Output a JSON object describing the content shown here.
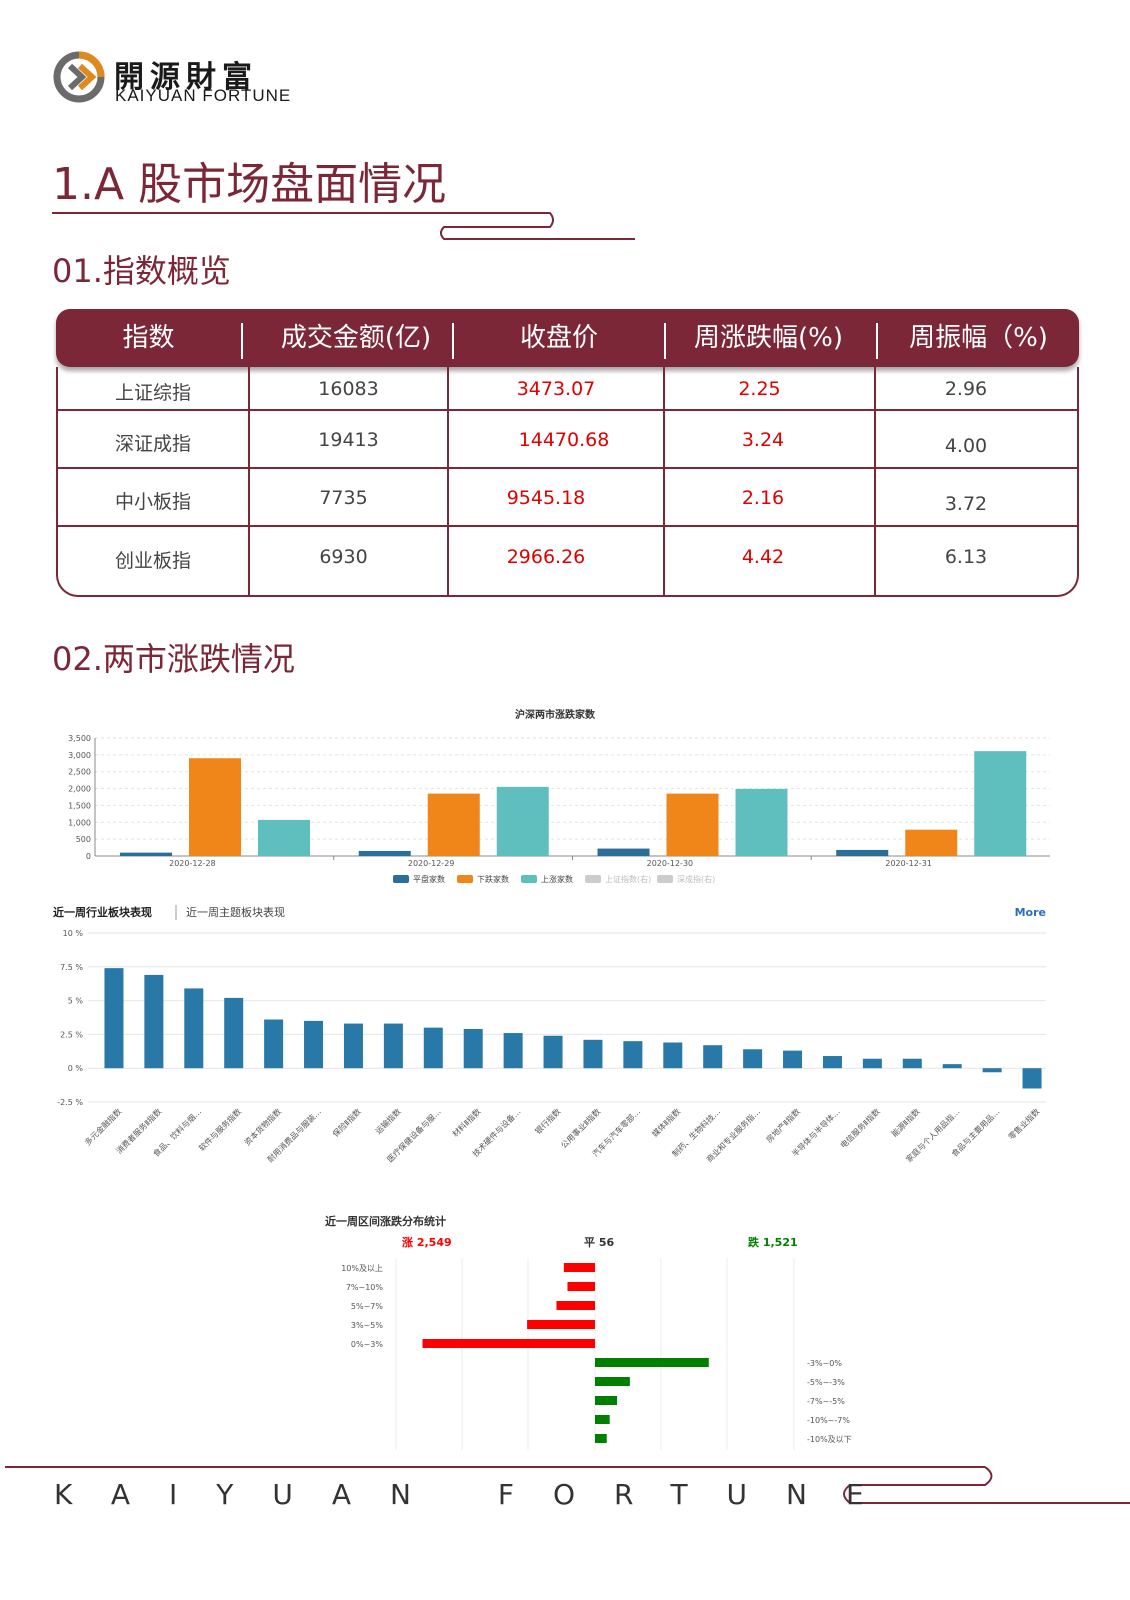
{
  "brand": {
    "cn": "開源財富",
    "en": "KAIYUAN FORTUNE"
  },
  "section_title": "1.A 股市场盘面情况",
  "sub1": "01.指数概览",
  "sub2": "02.两市涨跌情况",
  "table": {
    "headers": [
      "指数",
      "成交金额(亿)",
      "收盘价",
      "周涨跌幅(%)",
      "周振幅（%)"
    ],
    "rows": [
      [
        "上证综指",
        "16083",
        "3473.07",
        "2.25",
        "2.96"
      ],
      [
        "深证成指",
        "19413",
        "14470.68",
        "3.24",
        "4.00"
      ],
      [
        "中小板指",
        "7735",
        "9545.18",
        "2.16",
        "3.72"
      ],
      [
        "创业板指",
        "6930",
        "2966.26",
        "4.42",
        "6.13"
      ]
    ]
  },
  "chart_data": [
    {
      "type": "bar",
      "title": "沪深两市涨跌家数",
      "categories": [
        "2020-12-28",
        "2020-12-29",
        "2020-12-30",
        "2020-12-31"
      ],
      "series": [
        {
          "name": "平盘家数",
          "color": "#2a6f97",
          "values": [
            100,
            150,
            220,
            180
          ]
        },
        {
          "name": "下跌家数",
          "color": "#f0851a",
          "values": [
            2900,
            1850,
            1850,
            780
          ]
        },
        {
          "name": "上涨家数",
          "color": "#5fbfbf",
          "values": [
            1070,
            2050,
            1990,
            3110
          ]
        }
      ],
      "inactive_legend": [
        "上证指数(右)",
        "深成指(右)"
      ],
      "yticks": [
        "3,500",
        "3,000",
        "2,500",
        "2,000",
        "1,500",
        "1,000",
        "500",
        "0"
      ],
      "ylim": [
        0,
        3500
      ],
      "legend": "bottom"
    },
    {
      "type": "bar",
      "tabs": [
        "近一周行业板块表现",
        "近一周主题板块表现"
      ],
      "more": "More",
      "color": "#2878a8",
      "yticks": [
        "10 %",
        "7.5 %",
        "5 %",
        "2.5 %",
        "0 %",
        "-2.5 %"
      ],
      "ylim": [
        -2.5,
        10
      ],
      "categories": [
        "多元金融指数",
        "消费者服务Ⅱ指数",
        "食品、饮料与烟…",
        "软件与服务指数",
        "资本货物指数",
        "耐用消费品与服装…",
        "保险Ⅱ指数",
        "运输指数",
        "医疗保健设备与服…",
        "材料Ⅱ指数",
        "技术硬件与设备…",
        "银行指数",
        "公用事业Ⅱ指数",
        "汽车与汽车零部…",
        "媒体Ⅱ指数",
        "制药、生物科技…",
        "商业和专业服务指…",
        "房地产Ⅱ指数",
        "半导体与半导体…",
        "电信服务Ⅱ指数",
        "能源Ⅱ指数",
        "家庭与个人用品指…",
        "食品与主要用品…",
        "零售业指数"
      ],
      "values": [
        7.4,
        6.9,
        5.9,
        5.2,
        3.6,
        3.5,
        3.3,
        3.3,
        3.0,
        2.9,
        2.6,
        2.4,
        2.1,
        2.0,
        1.9,
        1.7,
        1.4,
        1.3,
        0.9,
        0.7,
        0.7,
        0.3,
        -0.3,
        -1.5
      ]
    },
    {
      "type": "bar",
      "title": "近一周区间涨跌分布统计",
      "summary": {
        "up": "涨 2,549",
        "flat": "平 56",
        "down": "跌 1,521"
      },
      "up_color": "#ff0000",
      "down_color": "#008000",
      "up_categories": [
        "10%及以上",
        "7%~10%",
        "5%~7%",
        "3%~5%",
        "0%~3%"
      ],
      "up_values": [
        85,
        75,
        105,
        185,
        470
      ],
      "down_categories": [
        "-3%~0%",
        "-5%~-3%",
        "-7%~-5%",
        "-10%~-7%",
        "-10%及以下"
      ],
      "down_values": [
        310,
        95,
        60,
        40,
        32
      ]
    }
  ],
  "footer": "KAIYUAN FORTUNE"
}
